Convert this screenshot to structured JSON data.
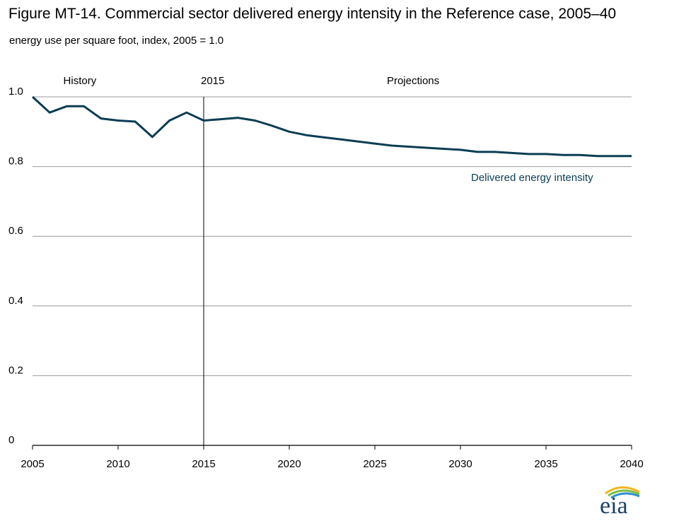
{
  "title": "Figure MT-14. Commercial sector delivered energy intensity in the Reference case, 2005–40",
  "subtitle": "energy use per square foot, index, 2005 = 1.0",
  "logo_text": "eia",
  "chart_data": {
    "type": "line",
    "xlim": [
      2005,
      2040
    ],
    "ylim": [
      0,
      1.0
    ],
    "x_ticks": [
      2005,
      2010,
      2015,
      2020,
      2025,
      2030,
      2035,
      2040
    ],
    "y_ticks": [
      {
        "value": 0,
        "label": "0"
      },
      {
        "value": 0.2,
        "label": "0.2"
      },
      {
        "value": 0.4,
        "label": "0.4"
      },
      {
        "value": 0.6,
        "label": "0.6"
      },
      {
        "value": 0.8,
        "label": "0.8"
      },
      {
        "value": 1.0,
        "label": "1.0"
      }
    ],
    "grid": true,
    "divider": {
      "x": 2015,
      "label": "2015"
    },
    "region_labels": [
      {
        "label": "History",
        "x": 2006.8
      },
      {
        "label": "Projections",
        "x": 2025.7
      }
    ],
    "series": [
      {
        "name": "Delivered energy intensity",
        "color": "#0b3d54",
        "x": [
          2005,
          2006,
          2007,
          2008,
          2009,
          2010,
          2011,
          2012,
          2013,
          2014,
          2015,
          2016,
          2017,
          2018,
          2019,
          2020,
          2021,
          2022,
          2023,
          2024,
          2025,
          2026,
          2027,
          2028,
          2029,
          2030,
          2031,
          2032,
          2033,
          2034,
          2035,
          2036,
          2037,
          2038,
          2039,
          2040
        ],
        "y": [
          1.0,
          0.955,
          0.973,
          0.973,
          0.938,
          0.932,
          0.929,
          0.885,
          0.932,
          0.955,
          0.932,
          0.936,
          0.94,
          0.932,
          0.917,
          0.9,
          0.89,
          0.884,
          0.878,
          0.872,
          0.866,
          0.86,
          0.857,
          0.854,
          0.851,
          0.848,
          0.842,
          0.842,
          0.839,
          0.836,
          0.836,
          0.833,
          0.833,
          0.83,
          0.83,
          0.83
        ]
      }
    ]
  }
}
